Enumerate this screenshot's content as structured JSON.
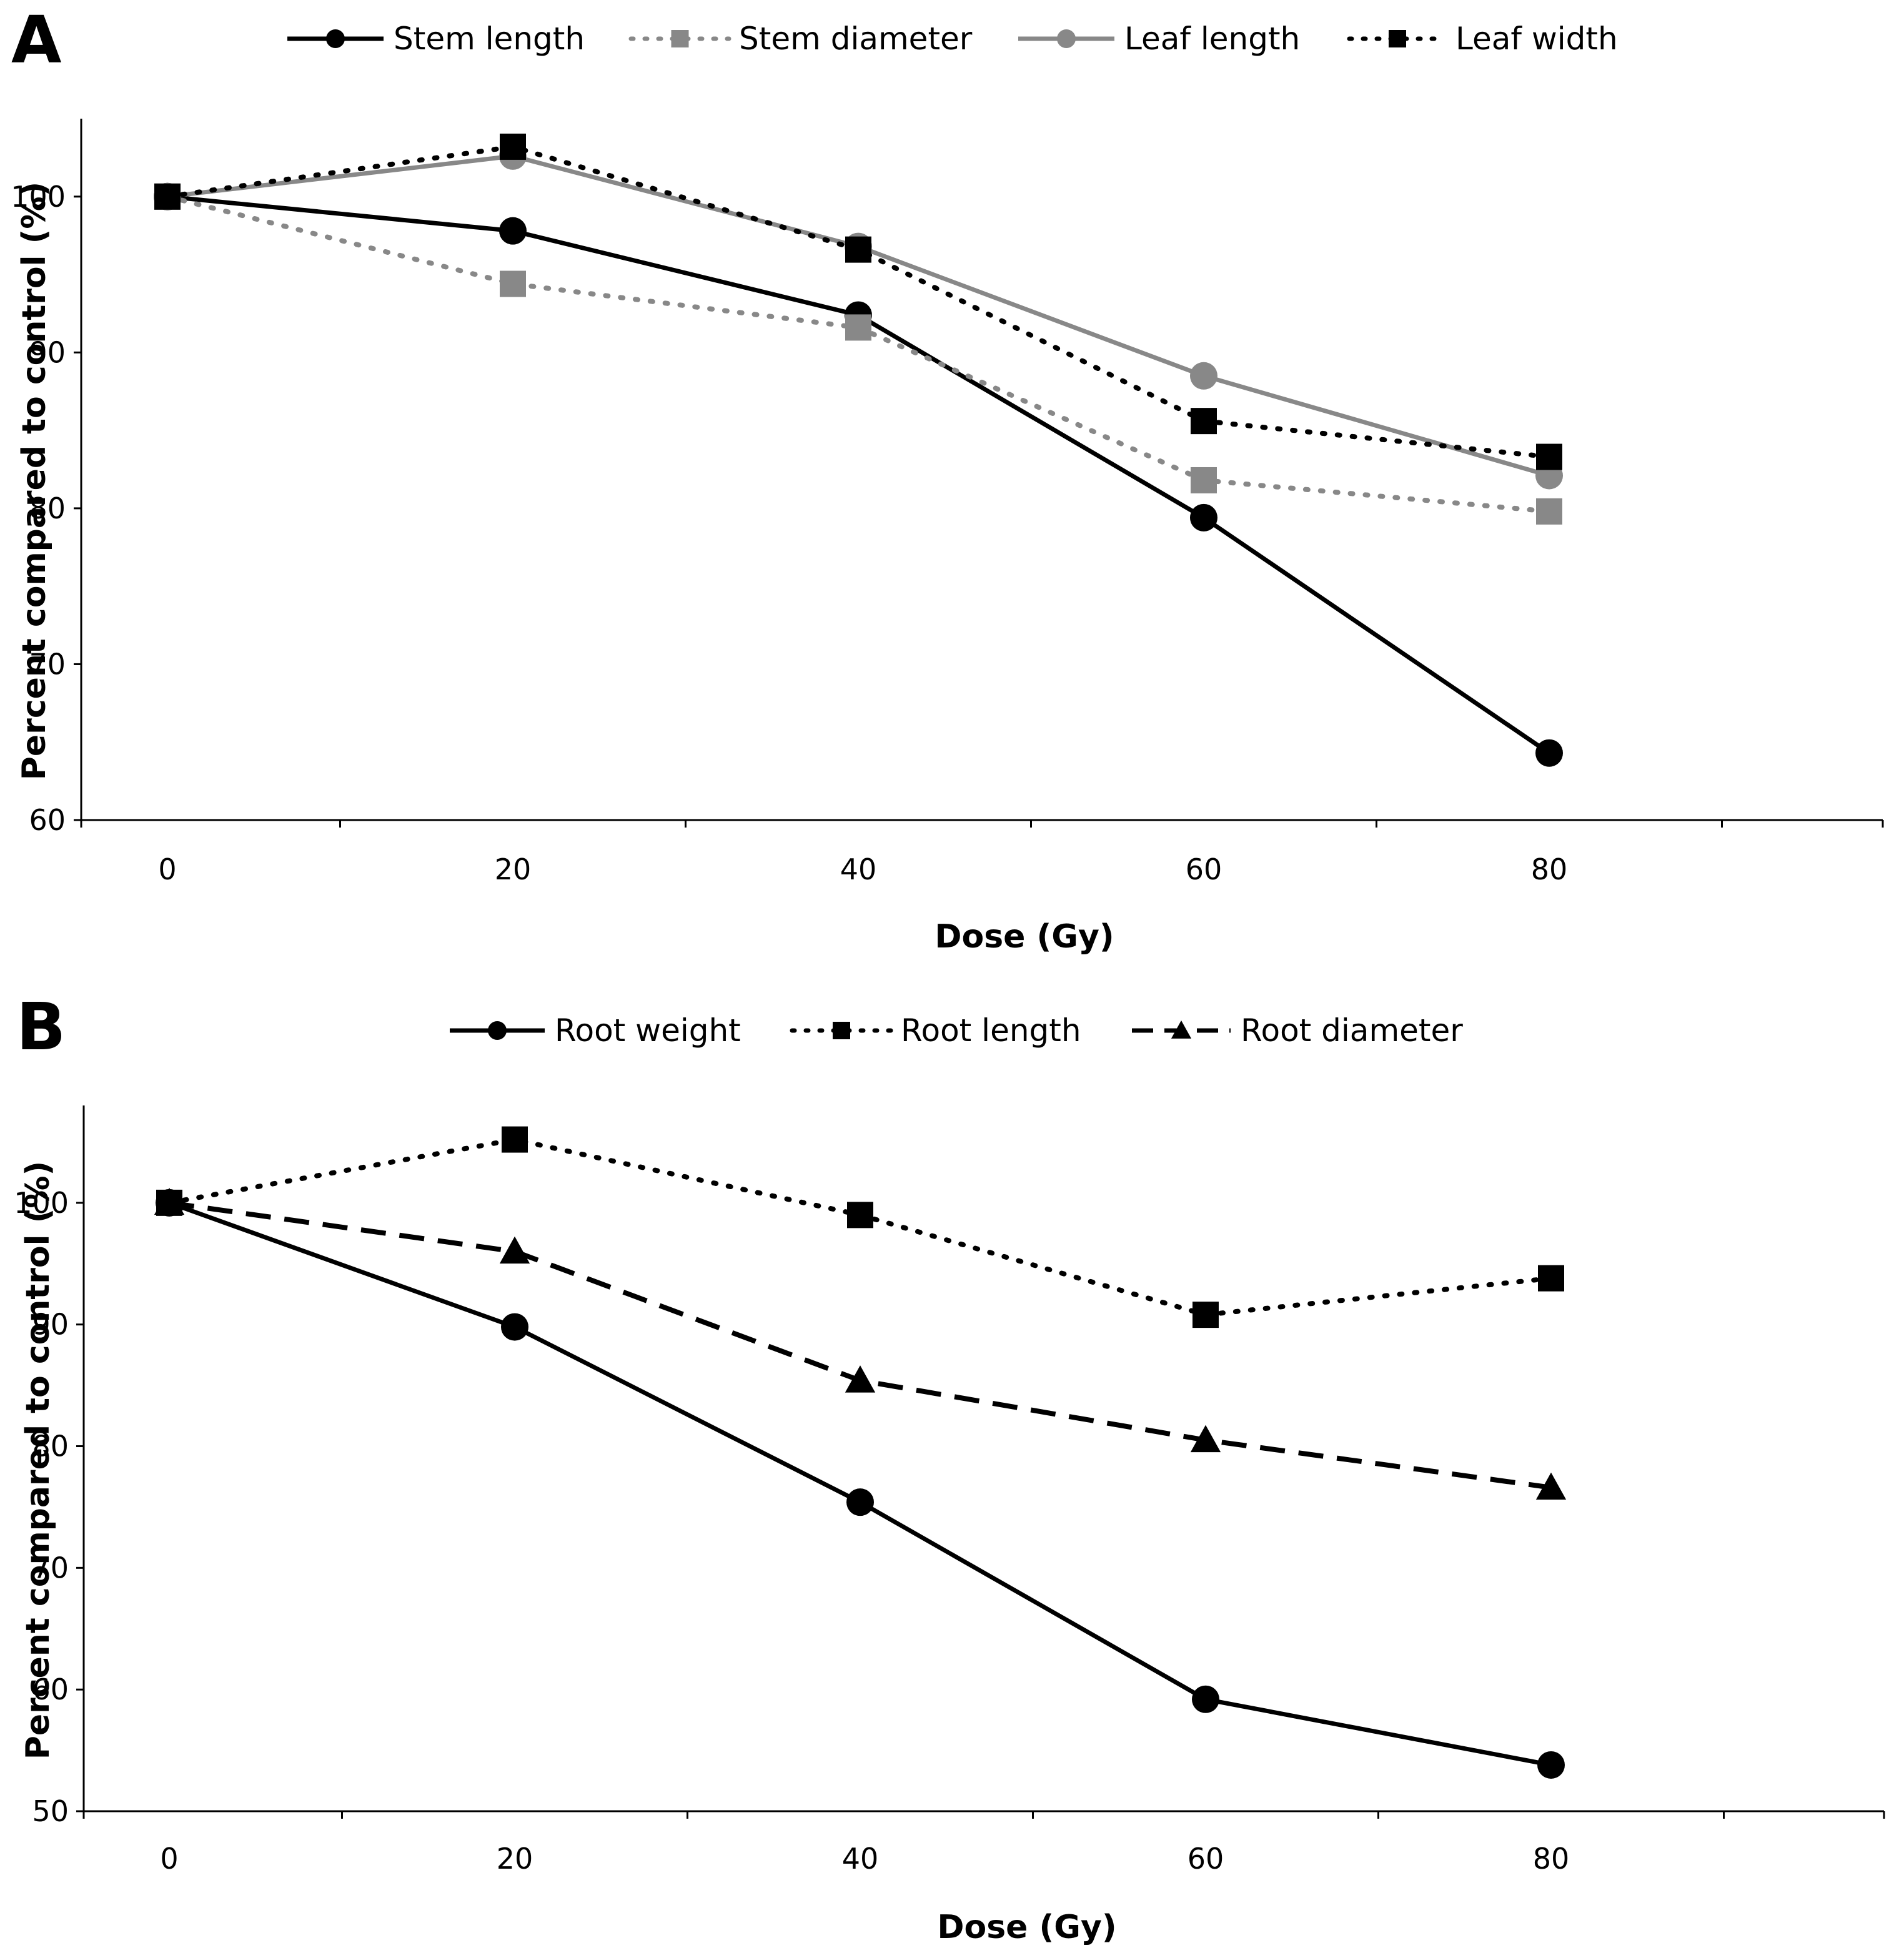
{
  "chart_data": [
    {
      "panel_label": "A",
      "type": "line",
      "x": [
        0,
        20,
        40,
        60,
        80
      ],
      "xlabel": "Dose (Gy)",
      "ylabel": "Percent compared to control (%)",
      "ylim": [
        60,
        105
      ],
      "yticks": [
        60,
        70,
        80,
        90,
        100
      ],
      "xticks": [
        0,
        20,
        40,
        60,
        80
      ],
      "legend": "top",
      "grid": false,
      "series": [
        {
          "name": "Stem length",
          "values": [
            100,
            97.8,
            92.4,
            79.4,
            64.3
          ],
          "color": "#000000",
          "line": "solid",
          "marker": "circle"
        },
        {
          "name": "Stem diameter",
          "values": [
            100,
            94.4,
            91.6,
            81.8,
            79.8
          ],
          "color": "#888888",
          "line": "dotted",
          "marker": "square"
        },
        {
          "name": "Leaf length",
          "values": [
            100,
            102.6,
            96.8,
            88.5,
            82.1
          ],
          "color": "#888888",
          "line": "solid",
          "marker": "circle"
        },
        {
          "name": "Leaf width",
          "values": [
            100,
            103.2,
            96.6,
            85.6,
            83.3
          ],
          "color": "#000000",
          "line": "dotted",
          "marker": "square"
        }
      ]
    },
    {
      "panel_label": "B",
      "type": "line",
      "x": [
        0,
        20,
        40,
        60,
        80
      ],
      "xlabel": "Dose (Gy)",
      "ylabel": "Percent compared to control (%)",
      "ylim": [
        50,
        108
      ],
      "yticks": [
        50,
        60,
        70,
        80,
        90,
        100
      ],
      "xticks": [
        0,
        20,
        40,
        60,
        80
      ],
      "legend": "top",
      "grid": false,
      "series": [
        {
          "name": "Root weight",
          "values": [
            100,
            89.8,
            75.4,
            59.2,
            53.8
          ],
          "color": "#000000",
          "line": "solid",
          "marker": "circle"
        },
        {
          "name": "Root length",
          "values": [
            100,
            105.2,
            99.0,
            90.8,
            93.8
          ],
          "color": "#000000",
          "line": "dotted",
          "marker": "square"
        },
        {
          "name": "Root diameter",
          "values": [
            100,
            96.0,
            85.4,
            80.5,
            76.6
          ],
          "color": "#000000",
          "line": "dashed",
          "marker": "triangle"
        }
      ]
    }
  ]
}
